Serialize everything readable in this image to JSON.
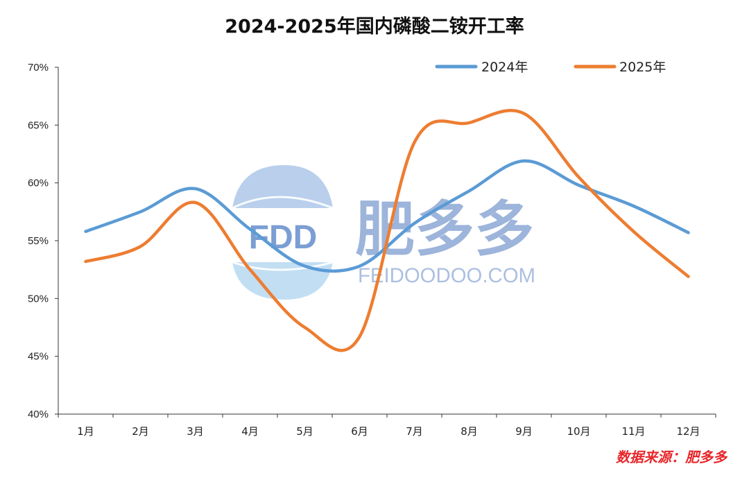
{
  "chart_data": {
    "type": "line",
    "title": "2024-2025年国内磷酸二铵开工率",
    "categories": [
      "1月",
      "2月",
      "3月",
      "4月",
      "5月",
      "6月",
      "7月",
      "8月",
      "9月",
      "10月",
      "11月",
      "12月"
    ],
    "series": [
      {
        "name": "2024年",
        "color": "#5b9bd5",
        "values": [
          55.8,
          57.5,
          59.5,
          56.0,
          52.8,
          52.8,
          56.5,
          59.3,
          61.9,
          59.8,
          58.0,
          55.7
        ]
      },
      {
        "name": "2025年",
        "color": "#ed7d31",
        "values": [
          53.2,
          54.5,
          58.3,
          52.5,
          47.5,
          46.7,
          63.5,
          65.2,
          66.0,
          60.5,
          55.8,
          51.9
        ]
      }
    ],
    "yticks": [
      "40%",
      "45%",
      "50%",
      "55%",
      "60%",
      "65%",
      "70%"
    ],
    "ylim": [
      40,
      70
    ],
    "grid": false,
    "legend_position": "top-right"
  },
  "watermark": {
    "logo_text": "FDD",
    "name_cn": "肥多多",
    "name_en": "FEIDOODOO.COM"
  },
  "source_text": "数据来源：肥多多"
}
